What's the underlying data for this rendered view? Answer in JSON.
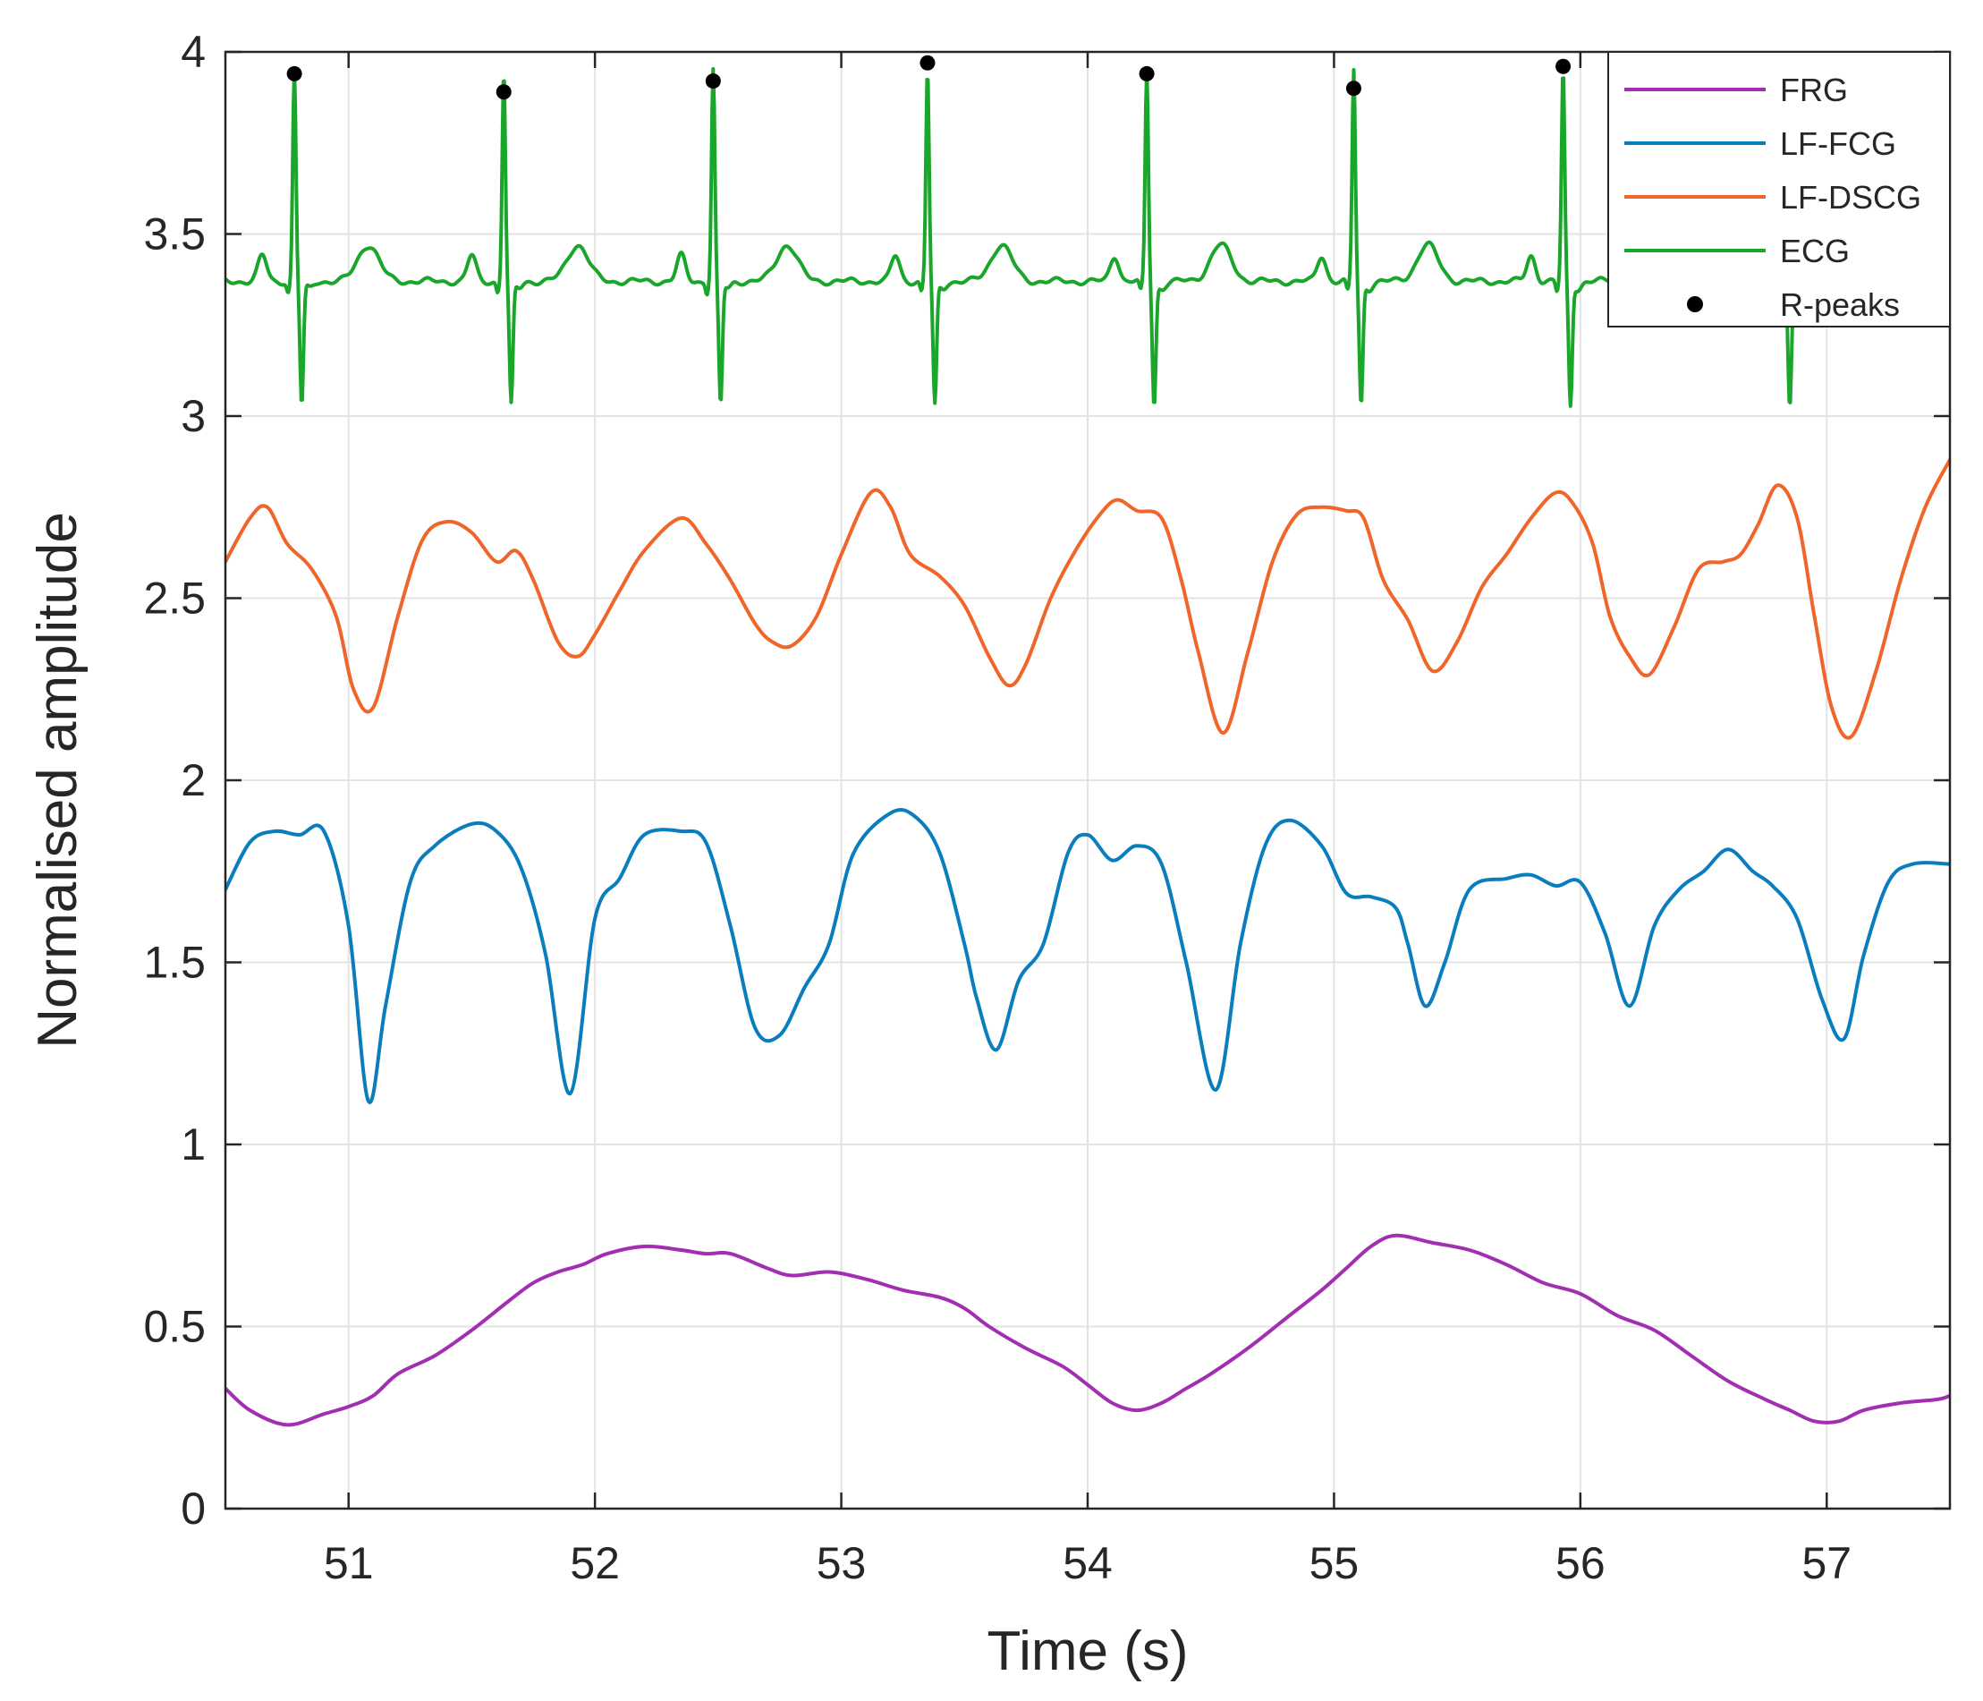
{
  "chart_data": {
    "type": "line",
    "title": "",
    "xlabel": "Time (s)",
    "ylabel": "Normalised amplitude",
    "xlim": [
      50.5,
      57.5
    ],
    "ylim": [
      0,
      4
    ],
    "xticks": [
      51,
      52,
      53,
      54,
      55,
      56,
      57
    ],
    "xtick_labels": [
      "51",
      "52",
      "53",
      "54",
      "55",
      "56",
      "57"
    ],
    "yticks": [
      0,
      0.5,
      1,
      1.5,
      2,
      2.5,
      3,
      3.5,
      4
    ],
    "ytick_labels": [
      "0",
      "0.5",
      "1",
      "1.5",
      "2",
      "2.5",
      "3",
      "3.5",
      "4"
    ],
    "grid": true,
    "legend_position": "top-right",
    "colors": {
      "FRG": "#a22fb2",
      "LF-FCG": "#0a7dbe",
      "LF-DSCG": "#f0662a",
      "ECG": "#1aa62b",
      "R-peaks": "#000000"
    },
    "legend": [
      "FRG",
      "LF-FCG",
      "LF-DSCG",
      "ECG",
      "R-peaks"
    ],
    "series": [
      {
        "name": "FRG",
        "x": [
          50.5,
          50.6,
          50.75,
          50.9,
          51.0,
          51.1,
          51.2,
          51.35,
          51.5,
          51.65,
          51.75,
          51.85,
          51.95,
          52.05,
          52.2,
          52.35,
          52.45,
          52.55,
          52.7,
          52.8,
          52.95,
          53.1,
          53.25,
          53.4,
          53.5,
          53.6,
          53.75,
          53.9,
          54.0,
          54.1,
          54.2,
          54.3,
          54.4,
          54.5,
          54.65,
          54.8,
          54.95,
          55.05,
          55.15,
          55.25,
          55.4,
          55.55,
          55.7,
          55.85,
          56.0,
          56.15,
          56.3,
          56.45,
          56.6,
          56.75,
          56.85,
          56.95,
          57.05,
          57.15,
          57.3,
          57.45,
          57.5
        ],
        "values": [
          0.33,
          0.27,
          0.23,
          0.26,
          0.28,
          0.31,
          0.37,
          0.42,
          0.49,
          0.57,
          0.62,
          0.65,
          0.67,
          0.7,
          0.72,
          0.71,
          0.7,
          0.7,
          0.66,
          0.64,
          0.65,
          0.63,
          0.6,
          0.58,
          0.55,
          0.5,
          0.44,
          0.39,
          0.34,
          0.29,
          0.27,
          0.29,
          0.33,
          0.37,
          0.44,
          0.52,
          0.6,
          0.66,
          0.72,
          0.75,
          0.73,
          0.71,
          0.67,
          0.62,
          0.59,
          0.53,
          0.49,
          0.42,
          0.35,
          0.3,
          0.27,
          0.24,
          0.24,
          0.27,
          0.29,
          0.3,
          0.31
        ]
      },
      {
        "name": "LF-FCG",
        "x": [
          50.5,
          50.6,
          50.7,
          50.8,
          50.9,
          51.0,
          51.08,
          51.15,
          51.25,
          51.35,
          51.5,
          51.6,
          51.7,
          51.8,
          51.9,
          52.0,
          52.1,
          52.2,
          52.35,
          52.45,
          52.55,
          52.65,
          52.75,
          52.85,
          52.95,
          53.05,
          53.2,
          53.3,
          53.4,
          53.5,
          53.55,
          53.63,
          53.72,
          53.82,
          53.92,
          54.0,
          54.1,
          54.2,
          54.3,
          54.4,
          54.52,
          54.62,
          54.72,
          54.82,
          54.95,
          55.05,
          55.15,
          55.25,
          55.3,
          55.37,
          55.45,
          55.55,
          55.7,
          55.8,
          55.9,
          56.0,
          56.1,
          56.2,
          56.3,
          56.4,
          56.5,
          56.6,
          56.7,
          56.78,
          56.88,
          56.98,
          57.07,
          57.15,
          57.25,
          57.35,
          57.5
        ],
        "values": [
          1.7,
          1.83,
          1.86,
          1.85,
          1.86,
          1.6,
          1.12,
          1.38,
          1.72,
          1.82,
          1.88,
          1.86,
          1.76,
          1.52,
          1.14,
          1.62,
          1.73,
          1.85,
          1.86,
          1.83,
          1.6,
          1.32,
          1.3,
          1.43,
          1.55,
          1.8,
          1.91,
          1.9,
          1.8,
          1.55,
          1.4,
          1.26,
          1.45,
          1.55,
          1.8,
          1.85,
          1.78,
          1.82,
          1.77,
          1.5,
          1.15,
          1.55,
          1.82,
          1.89,
          1.82,
          1.69,
          1.68,
          1.65,
          1.55,
          1.38,
          1.5,
          1.7,
          1.73,
          1.74,
          1.71,
          1.72,
          1.58,
          1.38,
          1.6,
          1.7,
          1.75,
          1.81,
          1.75,
          1.71,
          1.62,
          1.4,
          1.29,
          1.52,
          1.72,
          1.77,
          1.77
        ]
      },
      {
        "name": "LF-DSCG",
        "x": [
          50.5,
          50.6,
          50.67,
          50.75,
          50.85,
          50.95,
          51.02,
          51.1,
          51.2,
          51.3,
          51.4,
          51.5,
          51.6,
          51.68,
          51.75,
          51.85,
          51.93,
          52.0,
          52.1,
          52.2,
          52.35,
          52.45,
          52.55,
          52.65,
          52.72,
          52.8,
          52.9,
          53.0,
          53.12,
          53.2,
          53.28,
          53.4,
          53.5,
          53.6,
          53.68,
          53.75,
          53.85,
          53.95,
          54.05,
          54.12,
          54.2,
          54.3,
          54.38,
          54.45,
          54.55,
          54.65,
          54.75,
          54.85,
          54.95,
          55.05,
          55.12,
          55.2,
          55.3,
          55.4,
          55.5,
          55.6,
          55.7,
          55.8,
          55.9,
          55.97,
          56.05,
          56.12,
          56.2,
          56.28,
          56.38,
          56.48,
          56.58,
          56.65,
          56.72,
          56.8,
          56.88,
          56.95,
          57.02,
          57.1,
          57.2,
          57.3,
          57.4,
          57.5
        ],
        "values": [
          2.6,
          2.72,
          2.75,
          2.65,
          2.58,
          2.45,
          2.25,
          2.2,
          2.45,
          2.66,
          2.71,
          2.68,
          2.6,
          2.63,
          2.55,
          2.38,
          2.34,
          2.4,
          2.52,
          2.63,
          2.72,
          2.65,
          2.55,
          2.43,
          2.38,
          2.37,
          2.45,
          2.62,
          2.79,
          2.75,
          2.62,
          2.56,
          2.48,
          2.34,
          2.26,
          2.32,
          2.5,
          2.63,
          2.73,
          2.77,
          2.74,
          2.72,
          2.55,
          2.35,
          2.13,
          2.35,
          2.6,
          2.73,
          2.75,
          2.74,
          2.72,
          2.55,
          2.44,
          2.3,
          2.38,
          2.53,
          2.62,
          2.72,
          2.79,
          2.76,
          2.65,
          2.45,
          2.34,
          2.29,
          2.42,
          2.58,
          2.6,
          2.62,
          2.7,
          2.81,
          2.72,
          2.45,
          2.2,
          2.12,
          2.3,
          2.55,
          2.75,
          2.88
        ]
      },
      {
        "name": "ECG",
        "r_peak_times": [
          50.78,
          51.63,
          52.48,
          53.35,
          54.24,
          55.08,
          55.93,
          56.82
        ],
        "baseline": 3.37,
        "r_amplitude": 3.95,
        "s_amplitude": 3.03,
        "p_amplitude": 3.44,
        "t_amplitude": 3.47
      }
    ],
    "r_peaks": {
      "x": [
        50.78,
        51.63,
        52.48,
        53.35,
        54.24,
        55.08,
        55.93
      ],
      "y": [
        3.94,
        3.89,
        3.92,
        3.97,
        3.94,
        3.9,
        3.96
      ]
    }
  }
}
